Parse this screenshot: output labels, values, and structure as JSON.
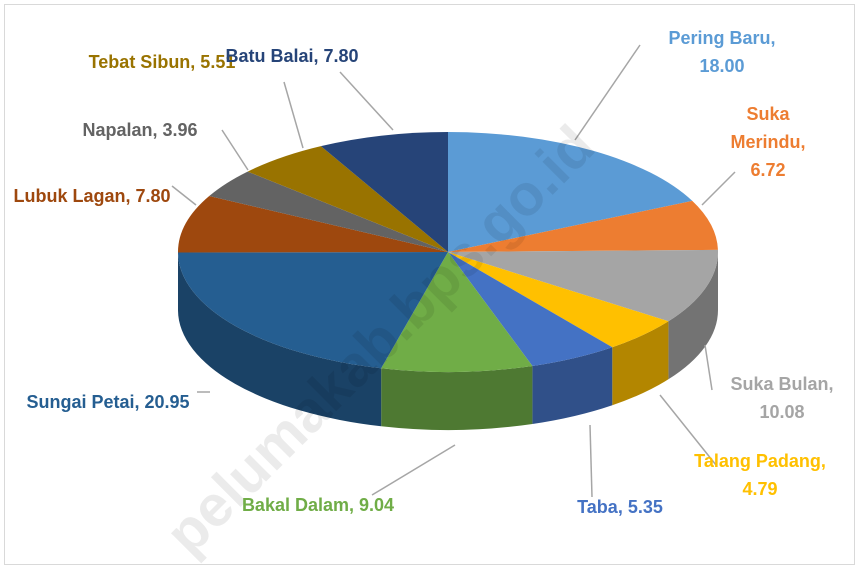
{
  "chart_data": {
    "type": "pie3d",
    "values": [
      18.0,
      6.72,
      10.08,
      4.79,
      5.35,
      9.04,
      20.95,
      7.8,
      3.96,
      5.51,
      7.8
    ],
    "value_labels": [
      "Pering Baru, 18.00",
      "Suka Merindu, 6.72",
      "Suka Bulan, 10.08",
      "Talang Padang, 4.79",
      "Taba, 5.35",
      "Bakal Dalam, 9.04",
      "Sungai Petai, 20.95",
      "Lubuk Lagan, 7.80",
      "Napalan, 3.96",
      "Tebat Sibun, 5.51",
      "Batu Balai, 7.80"
    ],
    "colors": [
      "#5b9bd5",
      "#ed7d31",
      "#a5a5a5",
      "#ffc000",
      "#4472c4",
      "#70ad47",
      "#255e91",
      "#9e480e",
      "#636363",
      "#997300",
      "#264478"
    ],
    "watermark": "pelumakab.bps.go.id"
  }
}
